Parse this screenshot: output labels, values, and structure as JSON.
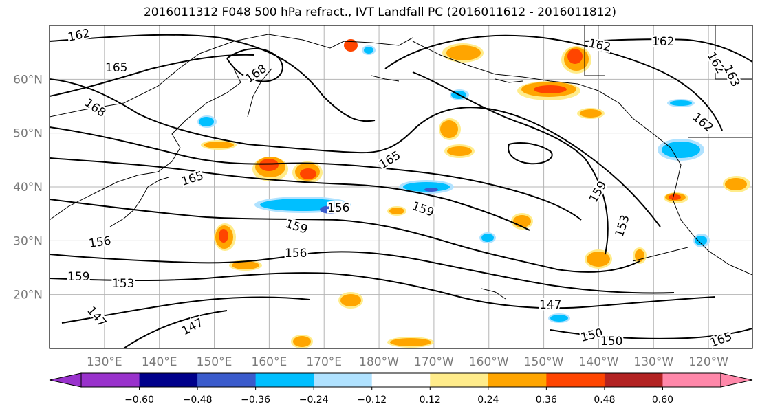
{
  "title": "2016011312 F048 500 hPa refract., IVT Landfall PC (2016011612 - 2016011812)",
  "map": {
    "lat_labels": [
      "60°N",
      "50°N",
      "40°N",
      "30°N",
      "20°N"
    ],
    "lat_values": [
      60,
      50,
      40,
      30,
      20
    ],
    "lon_labels": [
      "130°E",
      "140°E",
      "150°E",
      "160°E",
      "170°E",
      "180°W",
      "170°W",
      "160°W",
      "150°W",
      "140°W",
      "130°W",
      "120°W"
    ],
    "lat_range": [
      10,
      70
    ],
    "lon_range": [
      120,
      248
    ],
    "grid": true
  },
  "contour_labels": [
    "162",
    "165",
    "168",
    "168",
    "165",
    "156",
    "159",
    "153",
    "147",
    "165",
    "156",
    "159",
    "159",
    "156",
    "165",
    "159",
    "153",
    "147",
    "147",
    "150",
    "162",
    "162",
    "162",
    "163",
    "162",
    "150"
  ],
  "colorbar": {
    "labels": [
      "−0.60",
      "−0.48",
      "−0.36",
      "−0.24",
      "−0.12",
      "0.12",
      "0.24",
      "0.36",
      "0.48",
      "0.60"
    ],
    "colors": [
      "#9932cc",
      "#00008b",
      "#3a5bcc",
      "#00bfff",
      "#b0e2ff",
      "#ffffff",
      "#ffec8b",
      "#ffa500",
      "#ff4500",
      "#b22222",
      "#ff88aa"
    ]
  }
}
